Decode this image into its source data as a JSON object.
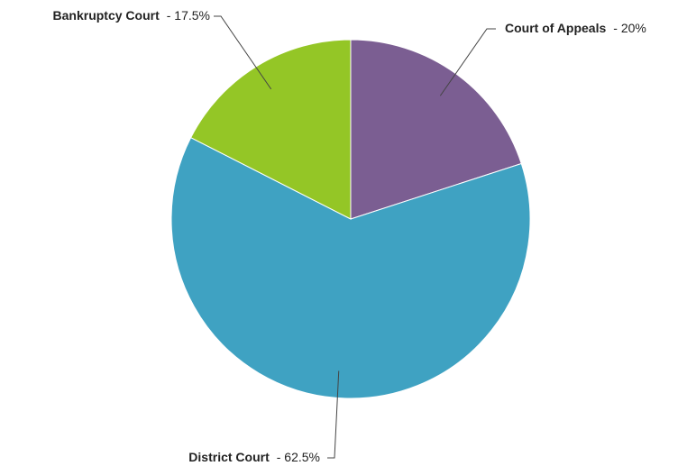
{
  "chart_data": {
    "type": "pie",
    "categories": [
      "Court of Appeals",
      "District Court",
      "Bankruptcy Court"
    ],
    "values": [
      20,
      62.5,
      17.5
    ],
    "value_labels": [
      "- 20%",
      "- 62.5%",
      "- 17.5%"
    ],
    "colors": [
      "#7b5e92",
      "#3fa2c2",
      "#94c626"
    ]
  }
}
